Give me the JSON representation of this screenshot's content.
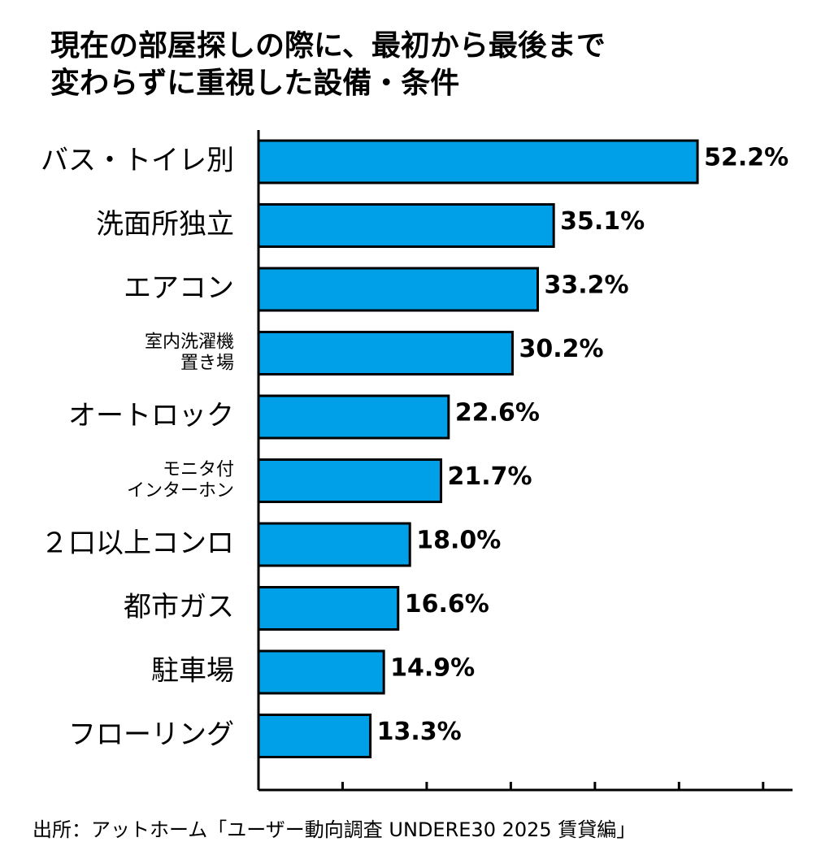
{
  "chart_data": {
    "type": "bar",
    "orientation": "horizontal",
    "title": "現在の部屋探しの際に、最初から最後まで\n変わらずに重視した設備・条件",
    "categories": [
      "バス・トイレ別",
      "洗面所独立",
      "エアコン",
      "室内洗濯機\n置き場",
      "オートロック",
      "モニタ付\nインターホン",
      "２口以上コンロ",
      "都市ガス",
      "駐車場",
      "フローリング"
    ],
    "values": [
      52.2,
      35.1,
      33.2,
      30.2,
      22.6,
      21.7,
      18.0,
      16.6,
      14.9,
      13.3
    ],
    "value_labels": [
      "52.2%",
      "35.1%",
      "33.2%",
      "30.2%",
      "22.6%",
      "21.7%",
      "18.0%",
      "16.6%",
      "14.9%",
      "13.3%"
    ],
    "color": "#00a0e9",
    "xlim": [
      0,
      63.5
    ],
    "xticks": [
      0,
      10,
      20,
      30,
      40,
      50,
      60
    ],
    "source": "出所：アットホーム「ユーザー動向調査 UNDERE30 2025 賃貸編」"
  }
}
